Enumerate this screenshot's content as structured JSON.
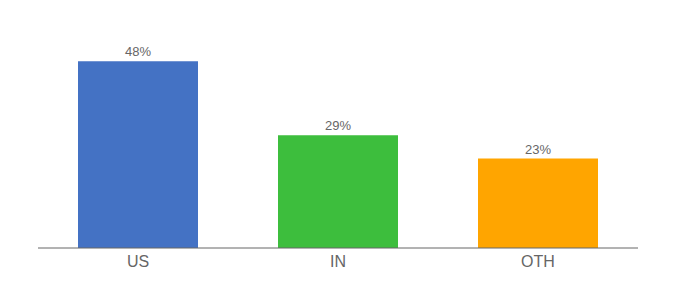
{
  "chart_data": {
    "type": "bar",
    "categories": [
      "US",
      "IN",
      "OTH"
    ],
    "values": [
      48,
      29,
      23
    ],
    "value_labels": [
      "48%",
      "29%",
      "23%"
    ],
    "colors": [
      "#4472C4",
      "#3DBE3D",
      "#FFA500"
    ],
    "ylim": [
      0,
      54
    ],
    "data_labels": true,
    "tick_labels": "x",
    "grid": false
  }
}
